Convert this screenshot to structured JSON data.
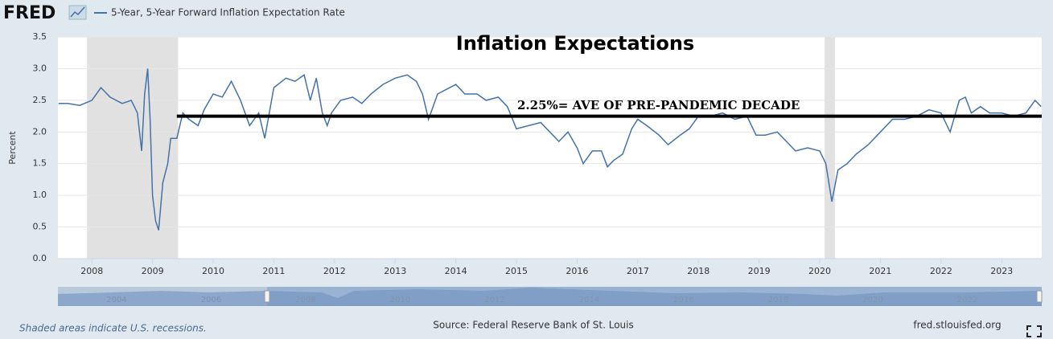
{
  "logo": "FRED",
  "footer": {
    "recession_note": "Shaded areas indicate U.S. recessions.",
    "source": "Source: Federal Reserve Bank of St. Louis",
    "site": "fred.stlouisfed.org"
  },
  "navigator_labels": [
    "2004",
    "2006",
    "2008",
    "2010",
    "2012",
    "2014",
    "2016",
    "2018",
    "2020",
    "2022"
  ],
  "chart_data": {
    "type": "line",
    "title": "Inflation Expectations",
    "ylabel": "Percent",
    "xlim": [
      2007.44,
      2023.66
    ],
    "xticks": [
      2008,
      2009,
      2010,
      2011,
      2012,
      2013,
      2014,
      2015,
      2016,
      2017,
      2018,
      2019,
      2020,
      2021,
      2022,
      2023
    ],
    "ylim": [
      0,
      3.5
    ],
    "yticks": [
      {
        "value": 0,
        "label": "0.0"
      },
      0.5,
      {
        "value": 1,
        "label": "1.0"
      },
      1.5,
      {
        "value": 2,
        "label": "2.0"
      },
      2.5,
      {
        "value": 3,
        "label": "3.0"
      },
      3.5
    ],
    "grid": true,
    "recessions": [
      [
        2007.92,
        2009.42
      ],
      [
        2020.08,
        2020.25
      ]
    ],
    "reference_line": {
      "value": 2.25,
      "xstart": 2009.4,
      "label": "2.25%= AVE OF PRE-PANDEMIC DECADE"
    },
    "x": [
      2007.45,
      2007.6,
      2007.8,
      2008.0,
      2008.15,
      2008.3,
      2008.5,
      2008.65,
      2008.75,
      2008.82,
      2008.87,
      2008.92,
      2008.96,
      2009.0,
      2009.05,
      2009.1,
      2009.17,
      2009.25,
      2009.3,
      2009.4,
      2009.5,
      2009.6,
      2009.75,
      2009.85,
      2010.0,
      2010.15,
      2010.3,
      2010.45,
      2010.6,
      2010.75,
      2010.85,
      2011.0,
      2011.2,
      2011.35,
      2011.5,
      2011.6,
      2011.7,
      2011.8,
      2011.88,
      2011.95,
      2012.1,
      2012.3,
      2012.45,
      2012.6,
      2012.8,
      2013.0,
      2013.2,
      2013.35,
      2013.45,
      2013.55,
      2013.7,
      2013.9,
      2014.0,
      2014.15,
      2014.35,
      2014.5,
      2014.7,
      2014.85,
      2015.0,
      2015.2,
      2015.4,
      2015.55,
      2015.7,
      2015.85,
      2016.0,
      2016.1,
      2016.25,
      2016.4,
      2016.5,
      2016.6,
      2016.75,
      2016.9,
      2017.0,
      2017.15,
      2017.35,
      2017.5,
      2017.7,
      2017.85,
      2018.0,
      2018.2,
      2018.4,
      2018.6,
      2018.8,
      2018.95,
      2019.1,
      2019.3,
      2019.45,
      2019.6,
      2019.8,
      2020.0,
      2020.1,
      2020.2,
      2020.3,
      2020.45,
      2020.6,
      2020.8,
      2021.0,
      2021.2,
      2021.4,
      2021.6,
      2021.8,
      2022.0,
      2022.15,
      2022.3,
      2022.4,
      2022.5,
      2022.65,
      2022.8,
      2023.0,
      2023.2,
      2023.4,
      2023.55,
      2023.65
    ],
    "series": [
      {
        "name": "5-Year, 5-Year Forward Inflation Expectation Rate",
        "color": "#4572a7",
        "values": [
          2.45,
          2.45,
          2.42,
          2.5,
          2.7,
          2.55,
          2.45,
          2.5,
          2.3,
          1.7,
          2.6,
          3.0,
          2.2,
          1.0,
          0.6,
          0.45,
          1.2,
          1.5,
          1.9,
          1.9,
          2.3,
          2.2,
          2.1,
          2.35,
          2.6,
          2.55,
          2.8,
          2.5,
          2.1,
          2.3,
          1.9,
          2.7,
          2.85,
          2.8,
          2.9,
          2.5,
          2.85,
          2.3,
          2.1,
          2.3,
          2.5,
          2.55,
          2.45,
          2.6,
          2.75,
          2.85,
          2.9,
          2.8,
          2.6,
          2.2,
          2.6,
          2.7,
          2.75,
          2.6,
          2.6,
          2.5,
          2.55,
          2.4,
          2.05,
          2.1,
          2.15,
          2.0,
          1.85,
          2.0,
          1.75,
          1.5,
          1.7,
          1.7,
          1.45,
          1.55,
          1.65,
          2.05,
          2.2,
          2.1,
          1.95,
          1.8,
          1.95,
          2.05,
          2.25,
          2.25,
          2.3,
          2.2,
          2.25,
          1.95,
          1.95,
          2.0,
          1.85,
          1.7,
          1.75,
          1.7,
          1.5,
          0.9,
          1.4,
          1.5,
          1.65,
          1.8,
          2.0,
          2.2,
          2.2,
          2.25,
          2.35,
          2.3,
          2.0,
          2.5,
          2.55,
          2.3,
          2.4,
          2.3,
          2.3,
          2.25,
          2.3,
          2.5,
          2.4
        ]
      }
    ]
  }
}
